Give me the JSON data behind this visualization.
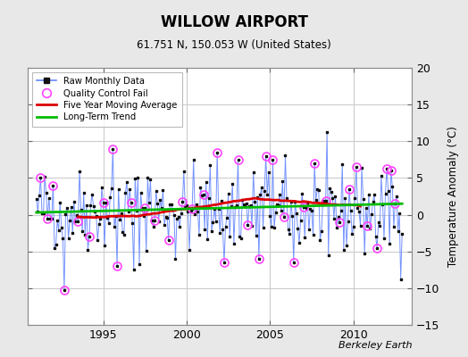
{
  "title": "WILLOW AIRPORT",
  "subtitle": "61.751 N, 150.053 W (United States)",
  "ylabel": "Temperature Anomaly (°C)",
  "credit": "Berkeley Earth",
  "ylim": [
    -15,
    20
  ],
  "yticks": [
    -15,
    -10,
    -5,
    0,
    5,
    10,
    15,
    20
  ],
  "xlim_start": 1990.5,
  "xlim_end": 2013.5,
  "xticks": [
    1995,
    2000,
    2005,
    2010
  ],
  "fig_bg_color": "#e8e8e8",
  "plot_bg_color": "#ffffff",
  "raw_line_color": "#6688ff",
  "raw_marker_color": "#111111",
  "qc_fail_color": "#ff44ff",
  "moving_avg_color": "#dd0000",
  "trend_color": "#00bb00",
  "seed": 42,
  "start_year": 1991,
  "end_year": 2013
}
